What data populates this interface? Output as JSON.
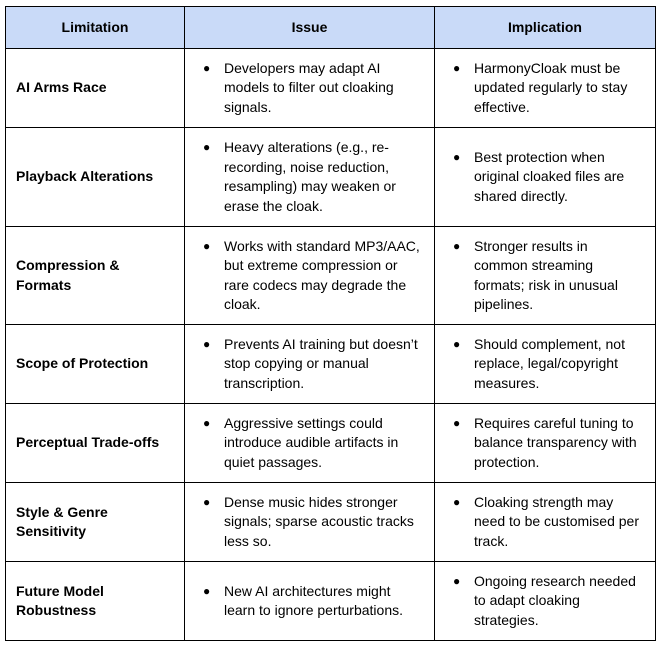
{
  "headers": {
    "limitation": "Limitation",
    "issue": "Issue",
    "implication": "Implication"
  },
  "rows": [
    {
      "limitation": "AI Arms Race",
      "issue": "Developers may adapt AI models to filter out cloaking signals.",
      "implication": "HarmonyCloak must be updated regularly to stay effective."
    },
    {
      "limitation": "Playback Alterations",
      "issue": "Heavy alterations (e.g., re-recording, noise reduction, resampling) may weaken or erase the cloak.",
      "implication": "Best protection when original cloaked files are shared directly."
    },
    {
      "limitation": "Compression & Formats",
      "issue": "Works with standard MP3/AAC, but extreme compression or rare codecs may degrade the cloak.",
      "implication": "Stronger results in common streaming formats; risk in unusual pipelines."
    },
    {
      "limitation": "Scope of Protection",
      "issue": "Prevents AI training but doesn’t stop copying or manual transcription.",
      "implication": "Should complement, not replace, legal/copyright measures."
    },
    {
      "limitation": "Perceptual Trade-offs",
      "issue": "Aggressive settings could introduce audible artifacts in quiet passages.",
      "implication": "Requires careful tuning to balance transparency with protection."
    },
    {
      "limitation": "Style & Genre Sensitivity",
      "issue": "Dense music hides stronger signals; sparse acoustic tracks less so.",
      "implication": "Cloaking strength may need to be customised per track."
    },
    {
      "limitation": "Future Model Robustness",
      "issue": "New AI architectures might learn to ignore perturbations.",
      "implication": "Ongoing research needed to adapt cloaking strategies."
    }
  ],
  "colors": {
    "header_bg": "#c9daf8",
    "border": "#000000"
  }
}
